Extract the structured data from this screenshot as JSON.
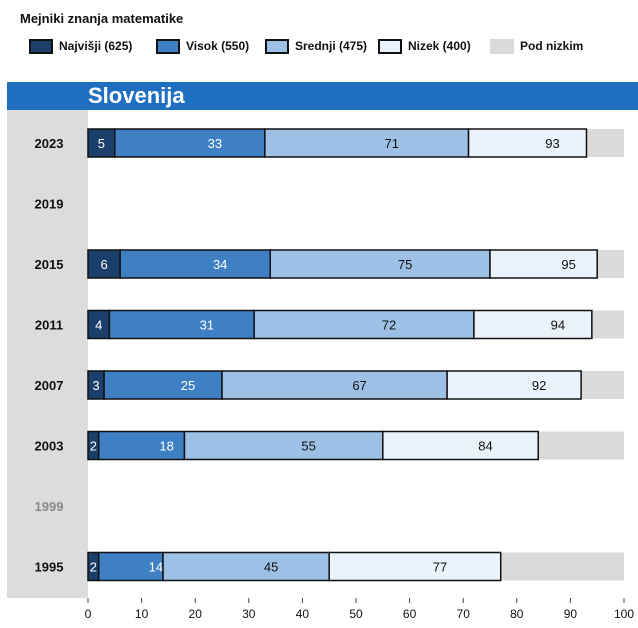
{
  "legend": {
    "title": "Mejniki znanja matematike",
    "items": [
      {
        "label": "Najvišji (625)",
        "color": "#1a3f6b"
      },
      {
        "label": "Visok (550)",
        "color": "#3f7fc4"
      },
      {
        "label": "Srednji (475)",
        "color": "#9dc0e6"
      },
      {
        "label": "Nizek (400)",
        "color": "#eaf3fb"
      },
      {
        "label": "Pod nizkim",
        "color": "#dadada"
      }
    ]
  },
  "chart_data": {
    "type": "bar",
    "orientation": "horizontal",
    "title": "Slovenija",
    "categories": [
      "2023",
      "2019",
      "2015",
      "2011",
      "2007",
      "2003",
      "1999",
      "1995"
    ],
    "missing": [
      "2019",
      "1999"
    ],
    "greyed_categories": [
      "1999"
    ],
    "xlim": [
      0,
      100
    ],
    "xticks": [
      "0",
      "10",
      "20",
      "30",
      "40",
      "50",
      "60",
      "70",
      "80",
      "90",
      "100"
    ],
    "series": [
      {
        "name": "Najvišji (625)",
        "color": "#1a3f6b",
        "text_color": "#ffffff",
        "values": [
          5,
          null,
          6,
          4,
          3,
          2,
          null,
          2
        ]
      },
      {
        "name": "Visok (550)",
        "color": "#3f7fc4",
        "text_color": "#ffffff",
        "values": [
          33,
          null,
          34,
          31,
          25,
          18,
          null,
          14
        ]
      },
      {
        "name": "Srednji (475)",
        "color": "#9dc0e6",
        "text_color": "#111111",
        "values": [
          71,
          null,
          75,
          72,
          67,
          55,
          null,
          45
        ]
      },
      {
        "name": "Nizek (400)",
        "color": "#eaf3fb",
        "text_color": "#111111",
        "values": [
          93,
          null,
          95,
          94,
          92,
          84,
          null,
          77
        ]
      }
    ],
    "remainder_color": "#dadada",
    "left_column_color": "#dcdcdc"
  }
}
